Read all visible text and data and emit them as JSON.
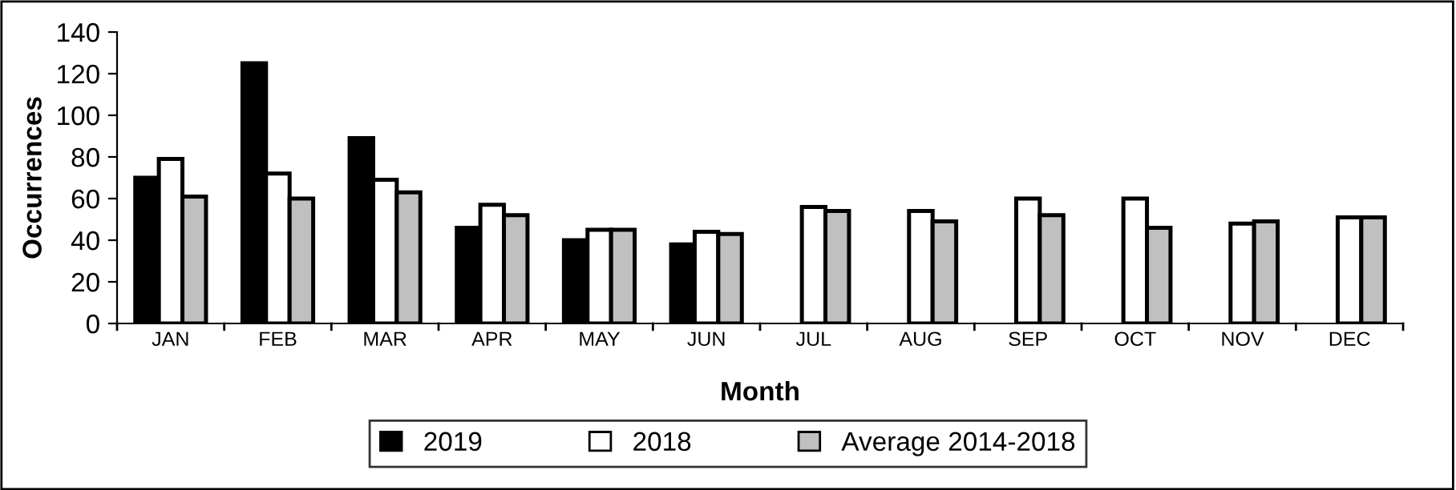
{
  "chart_data": {
    "type": "bar",
    "xlabel": "Month",
    "ylabel": "Occurrences",
    "categories": [
      "JAN",
      "FEB",
      "MAR",
      "APR",
      "MAY",
      "JUN",
      "JUL",
      "AUG",
      "SEP",
      "OCT",
      "NOV",
      "DEC"
    ],
    "series": [
      {
        "name": "2019",
        "color": "#000000",
        "values": [
          70,
          125,
          89,
          46,
          40,
          38,
          null,
          null,
          null,
          null,
          null,
          null
        ]
      },
      {
        "name": "2018",
        "color": "#ffffff",
        "values": [
          79,
          72,
          69,
          57,
          45,
          44,
          56,
          54,
          60,
          60,
          48,
          51
        ]
      },
      {
        "name": "Average 2014-2018",
        "color": "#c0c0c0",
        "values": [
          61,
          60,
          63,
          52,
          45,
          43,
          54,
          49,
          52,
          46,
          49,
          51
        ]
      }
    ],
    "ylim": [
      0,
      140
    ],
    "yticks": [
      0,
      20,
      40,
      60,
      80,
      100,
      120,
      140
    ],
    "grid": false,
    "legend": "bottom"
  }
}
